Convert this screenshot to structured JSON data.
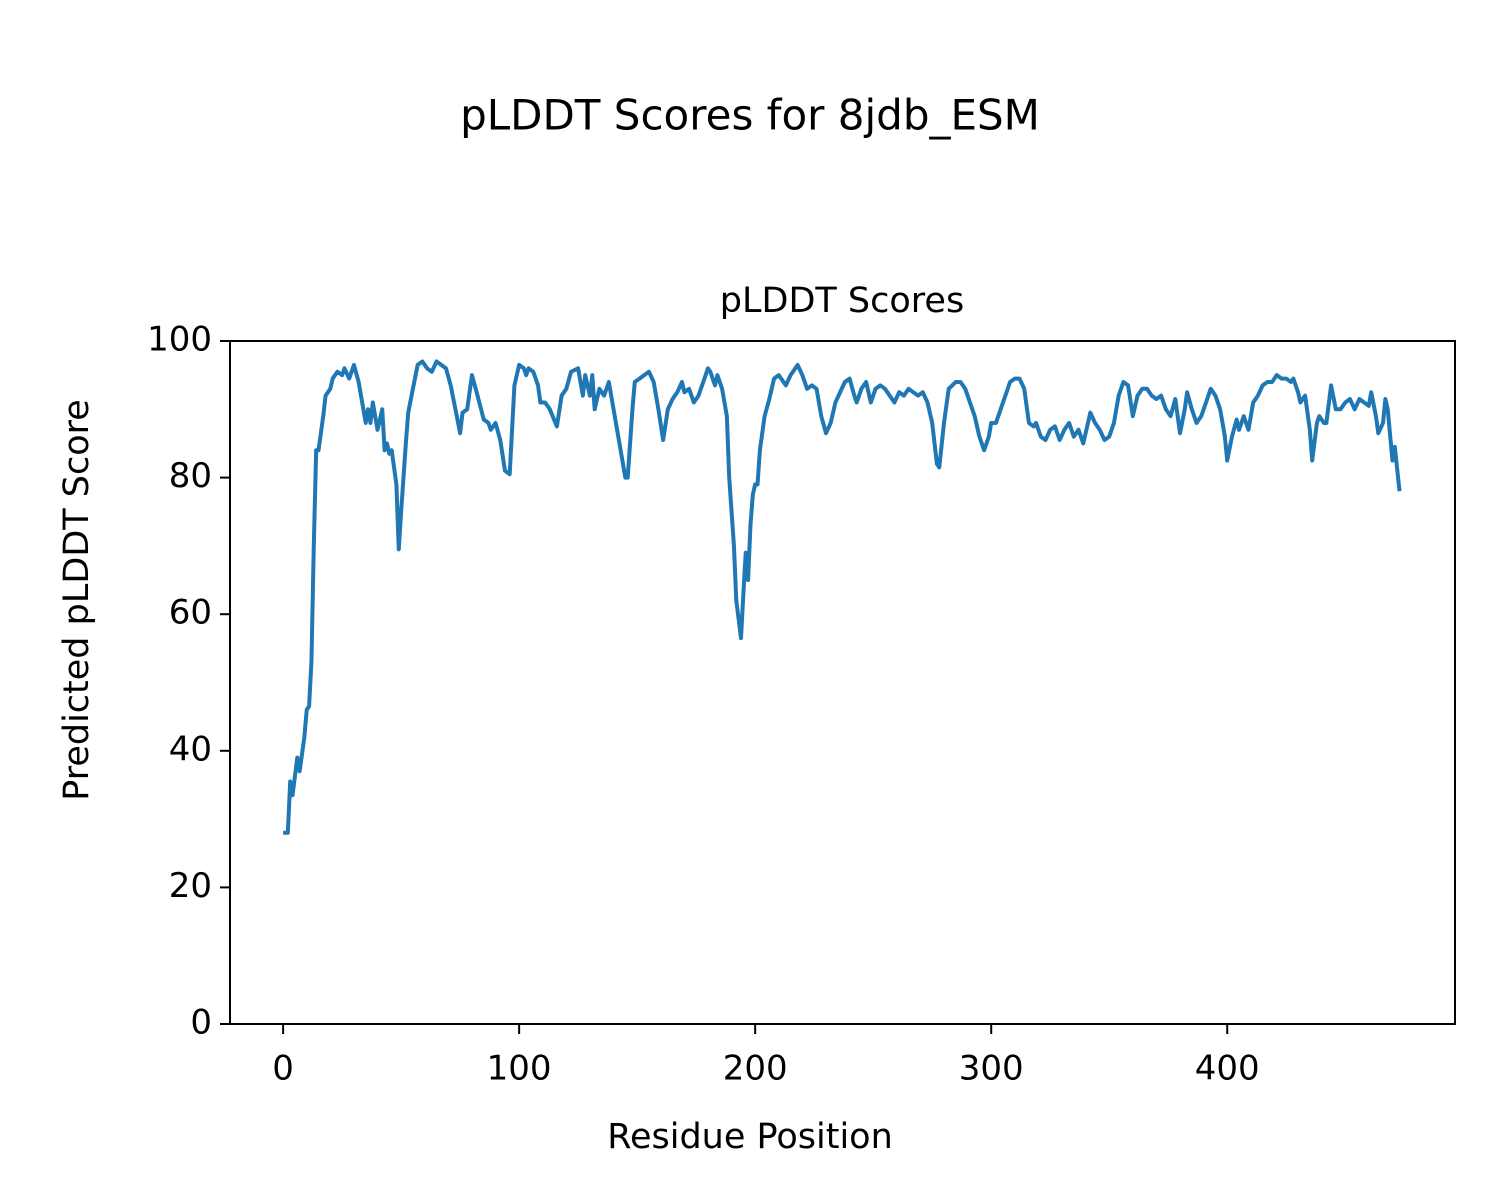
{
  "chart_data": {
    "type": "line",
    "title": "pLDDT Scores for 8jdb_ESM",
    "subtitle": "pLDDT Scores",
    "xlabel": "Residue Position",
    "ylabel": "Predicted pLDDT Score",
    "color": "#1f77b4",
    "grid": false,
    "xlim": [
      -22.5,
      496.5
    ],
    "xticks": [
      0,
      100,
      200,
      300,
      400
    ],
    "ylim": [
      0,
      100
    ],
    "yticks": [
      0,
      20,
      40,
      60,
      80,
      100
    ],
    "x": [
      0,
      2,
      3,
      4,
      6,
      7,
      9,
      10,
      11,
      12,
      13,
      14,
      15,
      17,
      18,
      20,
      21,
      23,
      25,
      26,
      28,
      30,
      32,
      33,
      35,
      36,
      37,
      38,
      40,
      42,
      43,
      44,
      45,
      46,
      48,
      49,
      50,
      52,
      53,
      55,
      57,
      59,
      61,
      63,
      65,
      67,
      69,
      71,
      73,
      75,
      76,
      78,
      80,
      82,
      85,
      87,
      88,
      90,
      92,
      94,
      96,
      98,
      100,
      102,
      103,
      104,
      106,
      108,
      109,
      111,
      113,
      116,
      118,
      120,
      122,
      125,
      127,
      128,
      130,
      131,
      132,
      134,
      136,
      138,
      140,
      142,
      145,
      146,
      148,
      149,
      151,
      153,
      155,
      157,
      159,
      161,
      163,
      165,
      167,
      169,
      170,
      172,
      174,
      176,
      178,
      180,
      181,
      183,
      184,
      186,
      188,
      189,
      191,
      192,
      194,
      195,
      196,
      197,
      198,
      199,
      200,
      201,
      202,
      204,
      206,
      208,
      210,
      212,
      213,
      215,
      216,
      218,
      220,
      222,
      224,
      226,
      228,
      230,
      232,
      234,
      236,
      238,
      240,
      242,
      243,
      245,
      247,
      249,
      251,
      253,
      255,
      257,
      259,
      261,
      263,
      265,
      267,
      269,
      271,
      273,
      275,
      277,
      278,
      280,
      282,
      285,
      287,
      289,
      291,
      293,
      295,
      297,
      299,
      300,
      302,
      304,
      306,
      308,
      310,
      312,
      314,
      316,
      318,
      319,
      321,
      323,
      325,
      327,
      329,
      331,
      333,
      335,
      337,
      339,
      341,
      342,
      344,
      346,
      348,
      350,
      352,
      354,
      356,
      358,
      360,
      362,
      364,
      366,
      368,
      370,
      372,
      374,
      376,
      378,
      380,
      382,
      383,
      385,
      387,
      389,
      391,
      393,
      395,
      397,
      399,
      400,
      402,
      404,
      405,
      407,
      409,
      411,
      413,
      415,
      417,
      419,
      421,
      423,
      425,
      427,
      428,
      430,
      431,
      433,
      435,
      436,
      438,
      439,
      441,
      442,
      444,
      446,
      448,
      450,
      452,
      454,
      456,
      458,
      460,
      461,
      463,
      464,
      466,
      467,
      468,
      470,
      471,
      473
    ],
    "values": [
      28,
      28,
      35.5,
      33.5,
      39,
      37,
      42,
      46,
      46.5,
      53,
      70,
      84,
      84,
      89,
      92,
      93,
      94.5,
      95.5,
      95,
      96,
      94.5,
      96.5,
      94,
      92,
      88,
      90,
      88,
      91,
      87,
      90,
      84,
      85,
      83.5,
      84,
      79,
      69.5,
      75,
      85,
      89.5,
      93,
      96.5,
      97,
      96,
      95.5,
      97,
      96.5,
      96,
      93.5,
      90,
      86.5,
      89.5,
      90,
      95,
      92.5,
      88.5,
      88,
      87,
      88,
      85.5,
      81,
      80.5,
      93.5,
      96.5,
      96,
      95,
      96,
      95.5,
      93.5,
      91,
      91,
      90,
      87.5,
      92,
      93,
      95.5,
      96,
      92,
      95,
      92,
      95,
      90,
      93,
      92,
      94,
      90,
      86,
      80,
      80,
      90,
      94,
      94.5,
      95,
      95.5,
      94,
      90,
      85.5,
      90,
      91.5,
      92.5,
      94,
      92.5,
      93,
      91,
      92,
      94,
      96,
      95.5,
      93.5,
      95,
      93,
      89,
      80,
      70,
      62,
      56.5,
      63,
      69,
      65,
      73,
      77.5,
      79,
      79,
      84,
      89,
      91.5,
      94.5,
      95,
      94,
      93.5,
      95,
      95.5,
      96.5,
      95,
      93,
      93.5,
      93,
      89,
      86.5,
      88,
      91,
      92.5,
      94,
      94.5,
      92,
      91,
      93,
      94,
      91,
      93,
      93.5,
      93,
      92,
      91,
      92.5,
      92,
      93,
      92.5,
      92,
      92.5,
      91,
      88,
      82,
      81.5,
      88,
      93,
      94,
      94,
      93,
      91,
      89,
      86,
      84,
      86,
      88,
      88,
      90,
      92,
      94,
      94.5,
      94.5,
      93,
      88,
      87.5,
      88,
      86,
      85.5,
      87,
      87.5,
      85.5,
      87,
      88,
      86,
      87,
      85,
      88,
      89.5,
      88,
      87,
      85.5,
      86,
      88,
      92,
      94,
      93.5,
      89,
      92,
      93,
      93,
      92,
      91.5,
      92,
      90,
      89,
      91.5,
      86.5,
      90,
      92.5,
      90,
      88,
      89,
      91,
      93,
      92,
      90,
      86,
      82.5,
      86,
      88.5,
      87,
      89,
      87,
      91,
      92,
      93.5,
      94,
      94,
      95,
      94.5,
      94.5,
      94,
      94.5,
      92.5,
      91,
      92,
      87,
      82.5,
      88,
      89,
      88,
      88,
      93.5,
      90,
      90,
      91,
      91.5,
      90,
      91.5,
      91,
      90.5,
      92.5,
      89,
      86.5,
      88,
      91.5,
      90,
      82.5,
      84.5,
      78
    ]
  }
}
